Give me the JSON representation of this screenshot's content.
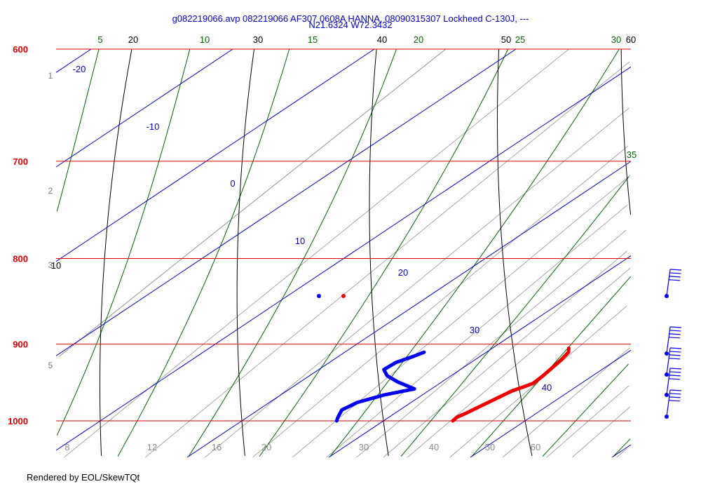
{
  "title_line1": "g082219066.avp 082219066 AF307 0608A HANNA, 08090315307 Lockheed C-130J, ---",
  "title_line2": "N21.6324 W72.3432",
  "footer": "Rendered by EOL/SkewTQt",
  "colors": {
    "isobar": "#dd0000",
    "isotherm": "#0000cc",
    "dry_adiabat": "#000000",
    "moist_adiabat": "#006600",
    "mixing_ratio": "#888888",
    "temperature": "#ee0000",
    "dewpoint": "#0000ee"
  },
  "chart_data": {
    "type": "skew-t",
    "pressure_range_hpa": [
      1000,
      600
    ],
    "isobars_hpa": [
      600,
      700,
      800,
      900,
      1000
    ],
    "isobar_labels": [
      "600",
      "700",
      "800",
      "900",
      "1000"
    ],
    "height_labels_km": [
      "1",
      "2",
      "3",
      "5"
    ],
    "isotherm_labels_c": [
      "-20",
      "-10",
      "0",
      "10",
      "20",
      "30",
      "40"
    ],
    "dry_adiabat_labels": [
      "10",
      "20",
      "30",
      "40",
      "50",
      "60"
    ],
    "moist_adiabat_labels": [
      "5",
      "10",
      "15",
      "20",
      "25",
      "30",
      "35"
    ],
    "mixing_ratio_labels_gkg": [
      "8",
      "12",
      "16",
      "20",
      "30",
      "40",
      "50",
      "60"
    ],
    "temperature_profile": [
      {
        "p": 1000,
        "t": 24.9
      },
      {
        "p": 995,
        "t": 24.8
      },
      {
        "p": 990,
        "t": 25.0
      },
      {
        "p": 980,
        "t": 25.3
      },
      {
        "p": 970,
        "t": 25.6
      },
      {
        "p": 960,
        "t": 25.9
      },
      {
        "p": 950,
        "t": 26.6
      },
      {
        "p": 940,
        "t": 26.5
      },
      {
        "p": 930,
        "t": 26.3
      },
      {
        "p": 920,
        "t": 26.1
      },
      {
        "p": 910,
        "t": 25.8
      },
      {
        "p": 905,
        "t": 25.4
      }
    ],
    "dewpoint_profile": [
      {
        "p": 1000,
        "td": 16.7
      },
      {
        "p": 995,
        "td": 16.4
      },
      {
        "p": 985,
        "td": 15.9
      },
      {
        "p": 975,
        "td": 16.2
      },
      {
        "p": 965,
        "td": 17.3
      },
      {
        "p": 957,
        "td": 18.8
      },
      {
        "p": 948,
        "td": 16.9
      },
      {
        "p": 940,
        "td": 15.5
      },
      {
        "p": 932,
        "td": 14.6
      },
      {
        "p": 923,
        "td": 14.7
      },
      {
        "p": 915,
        "td": 15.3
      },
      {
        "p": 910,
        "td": 15.6
      }
    ],
    "surface_points": {
      "temperature_marker_p": 850,
      "dewpoint_marker_p": 850
    },
    "wind_barbs_p": [
      850,
      920,
      945,
      970,
      1000
    ]
  }
}
